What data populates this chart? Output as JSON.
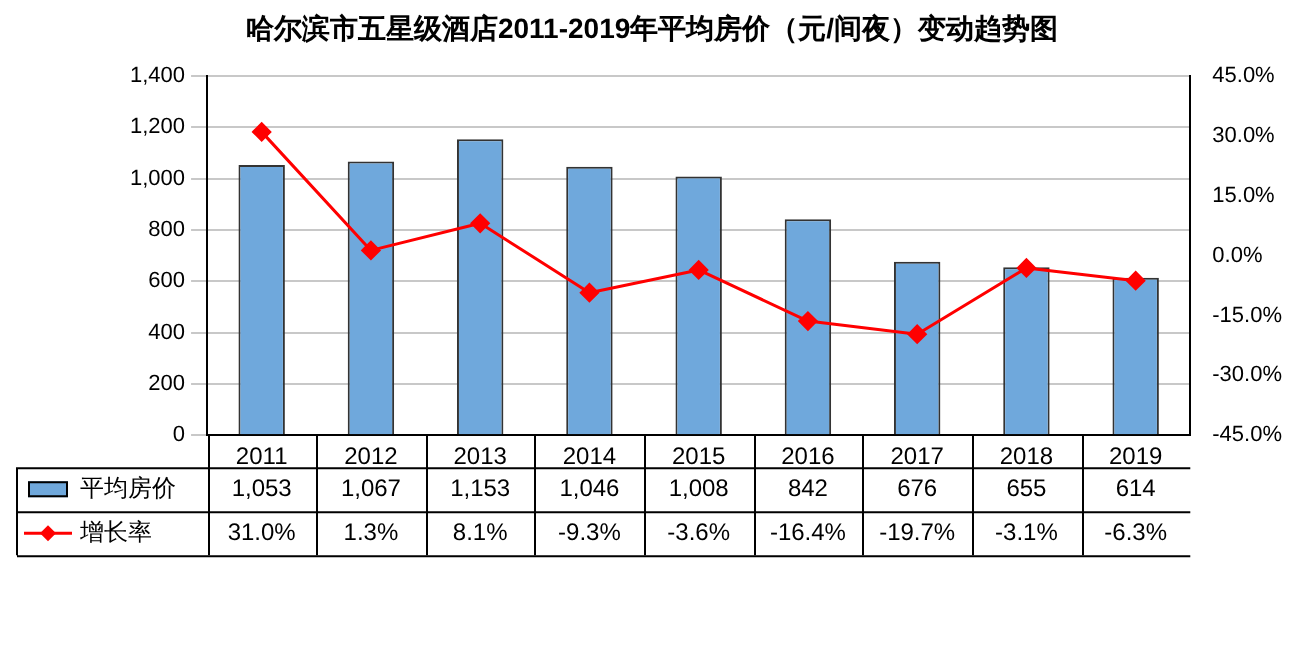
{
  "chart_data": {
    "type": "bar",
    "title": "哈尔滨市五星级酒店2011-2019年平均房价（元/间夜）变动趋势图",
    "categories": [
      "2011",
      "2012",
      "2013",
      "2014",
      "2015",
      "2016",
      "2017",
      "2018",
      "2019"
    ],
    "series": [
      {
        "name": "平均房价",
        "color": "#6fa8dc",
        "values": [
          1053,
          1067,
          1153,
          1046,
          1008,
          842,
          676,
          655,
          614
        ],
        "value_labels": [
          "1,053",
          "1,067",
          "1,153",
          "1,046",
          "1,008",
          "842",
          "676",
          "655",
          "614"
        ]
      },
      {
        "name": "增长率",
        "type": "line",
        "axis": "y2",
        "color": "#ff0000",
        "values": [
          31.0,
          1.3,
          8.1,
          -9.3,
          -3.6,
          -16.4,
          -19.7,
          -3.1,
          -6.3
        ],
        "value_labels": [
          "31.0%",
          "1.3%",
          "8.1%",
          "-9.3%",
          "-3.6%",
          "-16.4%",
          "-19.7%",
          "-3.1%",
          "-6.3%"
        ]
      }
    ],
    "ylim": [
      0,
      1400
    ],
    "yticks": [
      {
        "value": 0,
        "label": "0"
      },
      {
        "value": 200,
        "label": "200"
      },
      {
        "value": 400,
        "label": "400"
      },
      {
        "value": 600,
        "label": "600"
      },
      {
        "value": 800,
        "label": "800"
      },
      {
        "value": 1000,
        "label": "1,000"
      },
      {
        "value": 1200,
        "label": "1,200"
      },
      {
        "value": 1400,
        "label": "1,400"
      }
    ],
    "y2lim": [
      -45,
      45
    ],
    "y2ticks": [
      {
        "value": -45,
        "label": "-45.0%"
      },
      {
        "value": -30,
        "label": "-30.0%"
      },
      {
        "value": -15,
        "label": "-15.0%"
      },
      {
        "value": 0,
        "label": "0.0%"
      },
      {
        "value": 15,
        "label": "15.0%"
      },
      {
        "value": 30,
        "label": "30.0%"
      },
      {
        "value": 45,
        "label": "45.0%"
      }
    ],
    "grid": "y",
    "legend": "bottom",
    "marker": "diamond",
    "line_style": "solid"
  }
}
